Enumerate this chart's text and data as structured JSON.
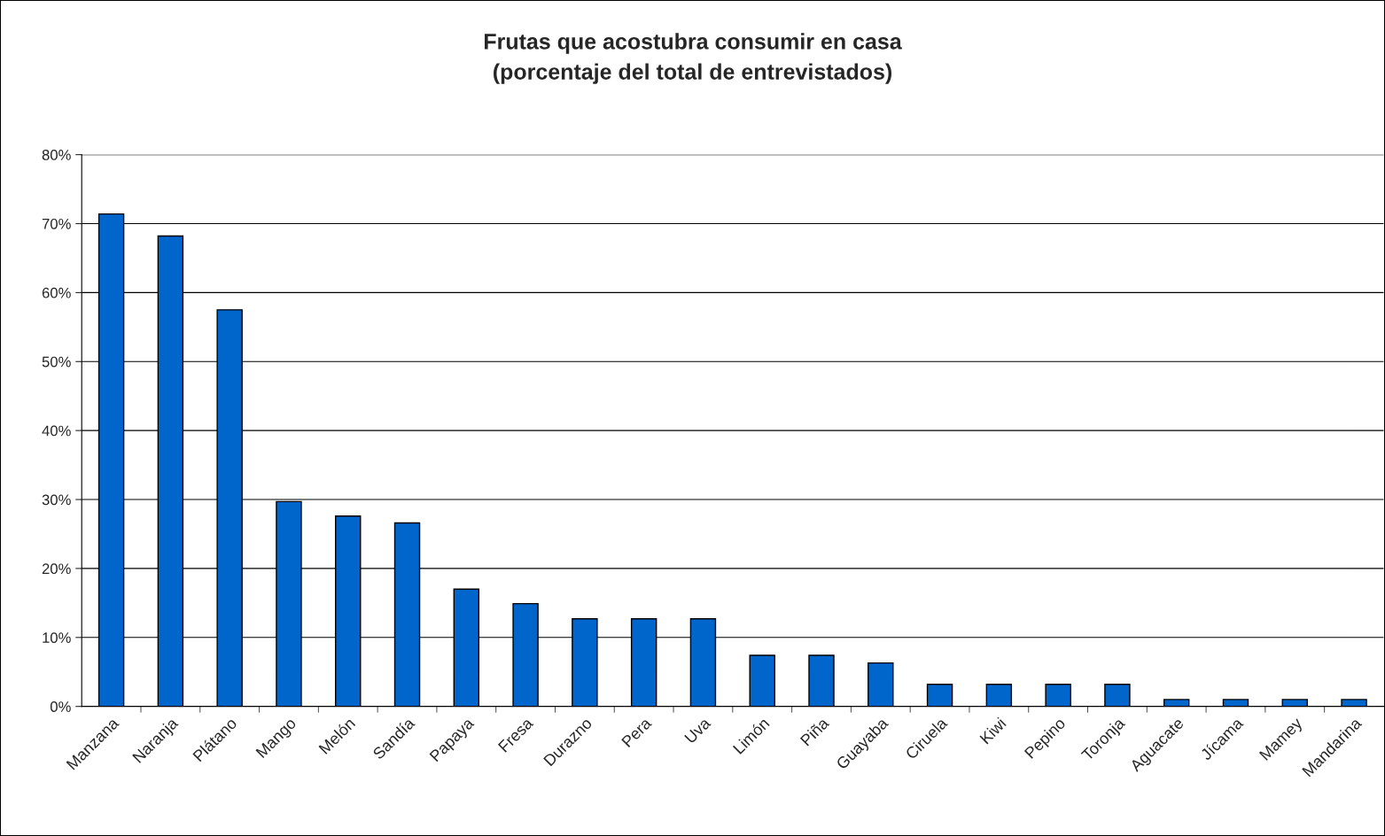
{
  "chart_data": {
    "type": "bar",
    "title": "Frutas que acostubra consumir en casa\n(porcentaje del total de entrevistados)",
    "categories": [
      "Manzana",
      "Naranja",
      "Plátano",
      "Mango",
      "Melón",
      "Sandía",
      "Papaya",
      "Fresa",
      "Durazno",
      "Pera",
      "Uva",
      "Limón",
      "Piña",
      "Guayaba",
      "Ciruela",
      "Kiwi",
      "Pepino",
      "Toronja",
      "Aguacate",
      "Jícama",
      "Mamey",
      "Mandarina"
    ],
    "values": [
      71.4,
      68.2,
      57.5,
      29.7,
      27.6,
      26.6,
      17.0,
      14.9,
      12.7,
      12.7,
      12.7,
      7.4,
      7.4,
      6.3,
      3.2,
      3.2,
      3.2,
      3.2,
      1.0,
      1.0,
      1.0,
      1.0
    ],
    "color": "#0066cc",
    "ylim": [
      0,
      80
    ],
    "yticks": [
      {
        "value": 0,
        "label": "0%"
      },
      {
        "value": 10,
        "label": "10%"
      },
      {
        "value": 20,
        "label": "20%"
      },
      {
        "value": 30,
        "label": "30%"
      },
      {
        "value": 40,
        "label": "40%"
      },
      {
        "value": 50,
        "label": "50%"
      },
      {
        "value": 60,
        "label": "60%"
      },
      {
        "value": 70,
        "label": "70%"
      },
      {
        "value": 80,
        "label": "80%"
      }
    ],
    "grid": "y",
    "legend": false
  }
}
